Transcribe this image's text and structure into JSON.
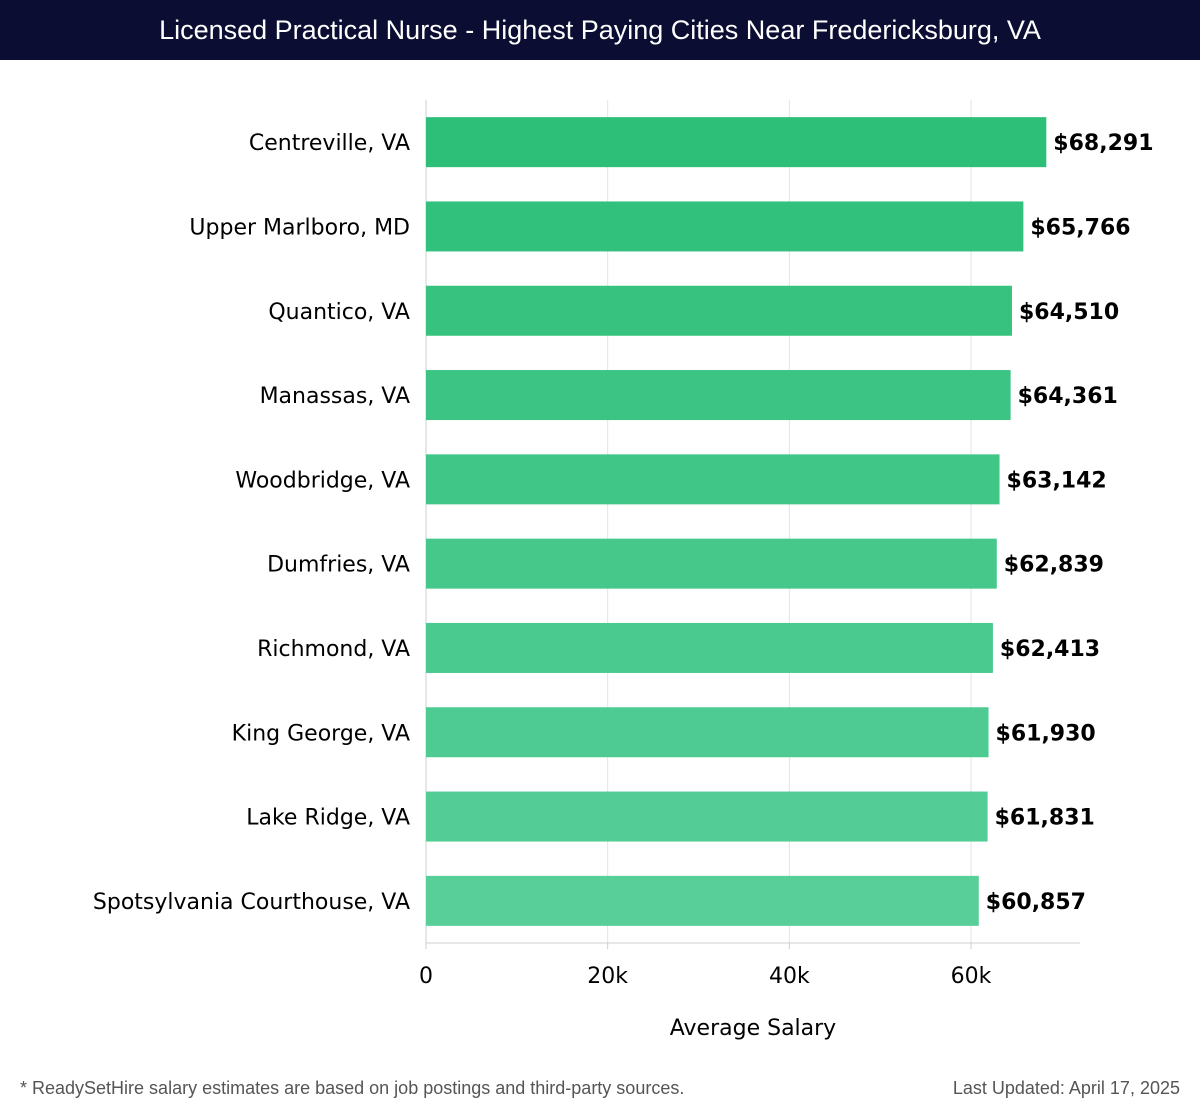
{
  "title": "Licensed Practical Nurse - Highest Paying Cities Near Fredericksburg, VA",
  "footer": {
    "note": "* ReadySetHire salary estimates are based on job postings and third-party sources.",
    "updated": "Last Updated: April 17, 2025"
  },
  "colors": {
    "header_bg": "#0b0d33",
    "bar_top": "#2dbf78",
    "bar_bottom": "#58cf99",
    "grid": "#e3e3e3"
  },
  "chart_data": {
    "type": "bar",
    "orientation": "horizontal",
    "categories": [
      "Centreville, VA",
      "Upper Marlboro, MD",
      "Quantico, VA",
      "Manassas, VA",
      "Woodbridge, VA",
      "Dumfries, VA",
      "Richmond, VA",
      "King George, VA",
      "Lake Ridge, VA",
      "Spotsylvania Courthouse, VA"
    ],
    "values": [
      68291,
      65766,
      64510,
      64361,
      63142,
      62839,
      62413,
      61930,
      61831,
      60857
    ],
    "value_labels": [
      "$68,291",
      "$65,766",
      "$64,510",
      "$64,361",
      "$63,142",
      "$62,839",
      "$62,413",
      "$61,930",
      "$61,831",
      "$60,857"
    ],
    "xlabel": "Average Salary",
    "ylabel": "",
    "xlim": [
      0,
      72000
    ],
    "xticks": [
      0,
      20000,
      40000,
      60000
    ],
    "xtick_labels": [
      "0",
      "20k",
      "40k",
      "60k"
    ],
    "grid": true,
    "legend": "none"
  }
}
